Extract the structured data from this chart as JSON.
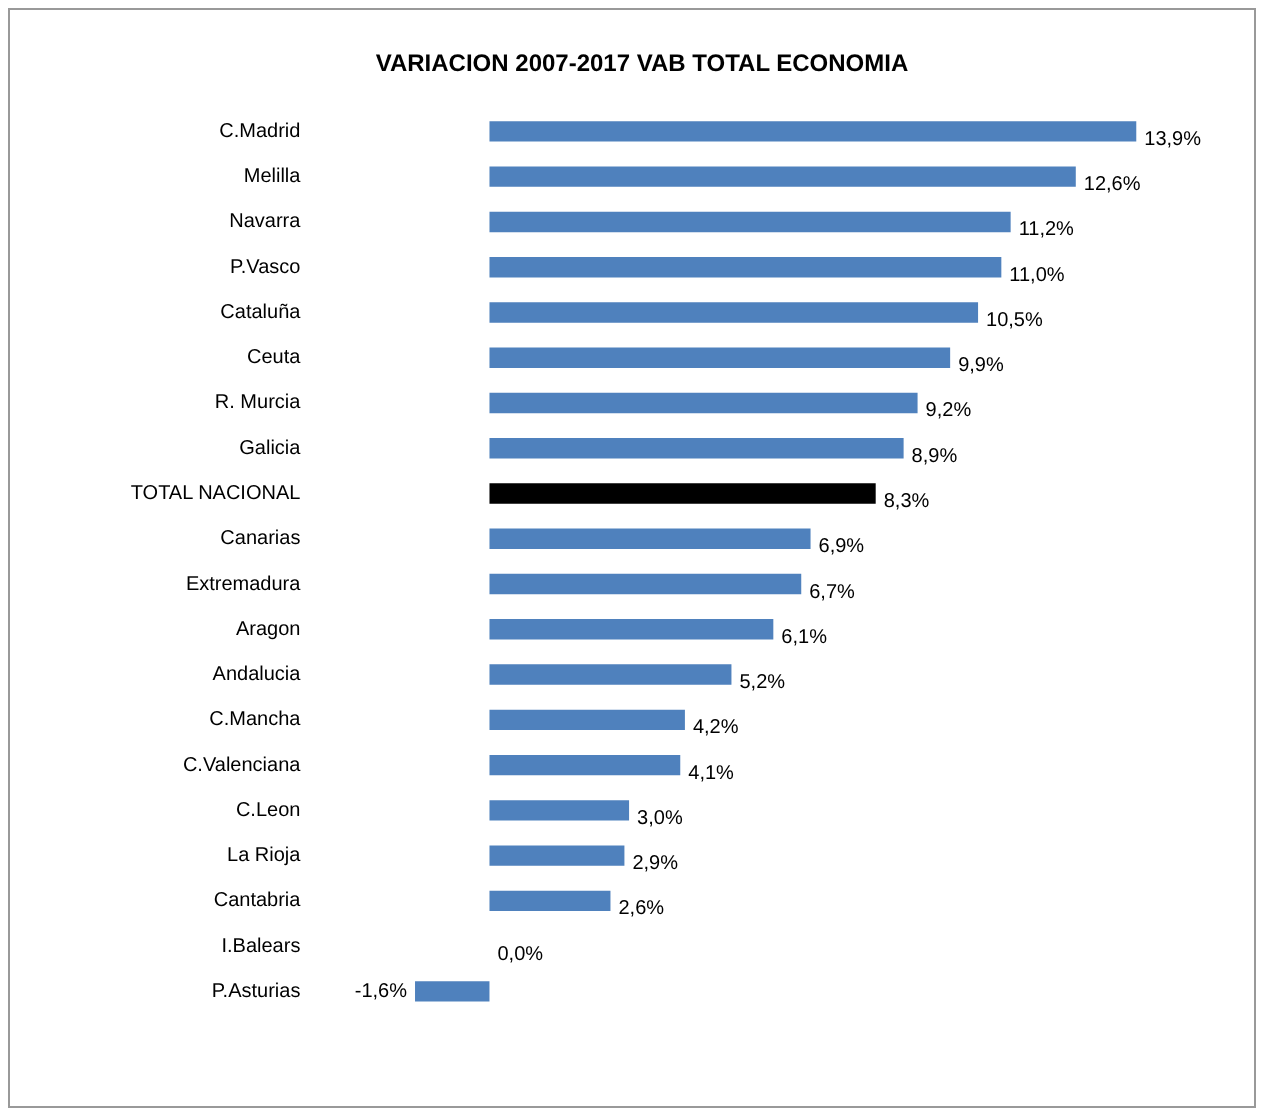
{
  "chart_data": {
    "type": "bar",
    "orientation": "horizontal",
    "title": "VARIACION 2007-2017 VAB TOTAL ECONOMIA",
    "categories": [
      "C.Madrid",
      "Melilla",
      "Navarra",
      "P.Vasco",
      "Cataluña",
      "Ceuta",
      "R. Murcia",
      "Galicia",
      "TOTAL NACIONAL",
      "Canarias",
      "Extremadura",
      "Aragon",
      "Andalucia",
      "C.Mancha",
      "C.Valenciana",
      "C.Leon",
      "La Rioja",
      "Cantabria",
      "I.Balears",
      "P.Asturias"
    ],
    "values": [
      13.9,
      12.6,
      11.2,
      11.0,
      10.5,
      9.9,
      9.2,
      8.9,
      8.3,
      6.9,
      6.7,
      6.1,
      5.2,
      4.2,
      4.1,
      3.0,
      2.9,
      2.6,
      0.0,
      -1.6
    ],
    "colors": [
      "#4f81bd",
      "#4f81bd",
      "#4f81bd",
      "#4f81bd",
      "#4f81bd",
      "#4f81bd",
      "#4f81bd",
      "#4f81bd",
      "#000000",
      "#4f81bd",
      "#4f81bd",
      "#4f81bd",
      "#4f81bd",
      "#4f81bd",
      "#4f81bd",
      "#4f81bd",
      "#4f81bd",
      "#4f81bd",
      "#4f81bd",
      "#4f81bd"
    ],
    "value_labels": [
      "13,9%",
      "12,6%",
      "11,2%",
      "11,0%",
      "10,5%",
      "9,9%",
      "9,2%",
      "8,9%",
      "8,3%",
      "6,9%",
      "6,7%",
      "6,1%",
      "5,2%",
      "4,2%",
      "4,1%",
      "3,0%",
      "2,9%",
      "2,6%",
      "0,0%",
      "-1,6%"
    ],
    "legend": false
  }
}
